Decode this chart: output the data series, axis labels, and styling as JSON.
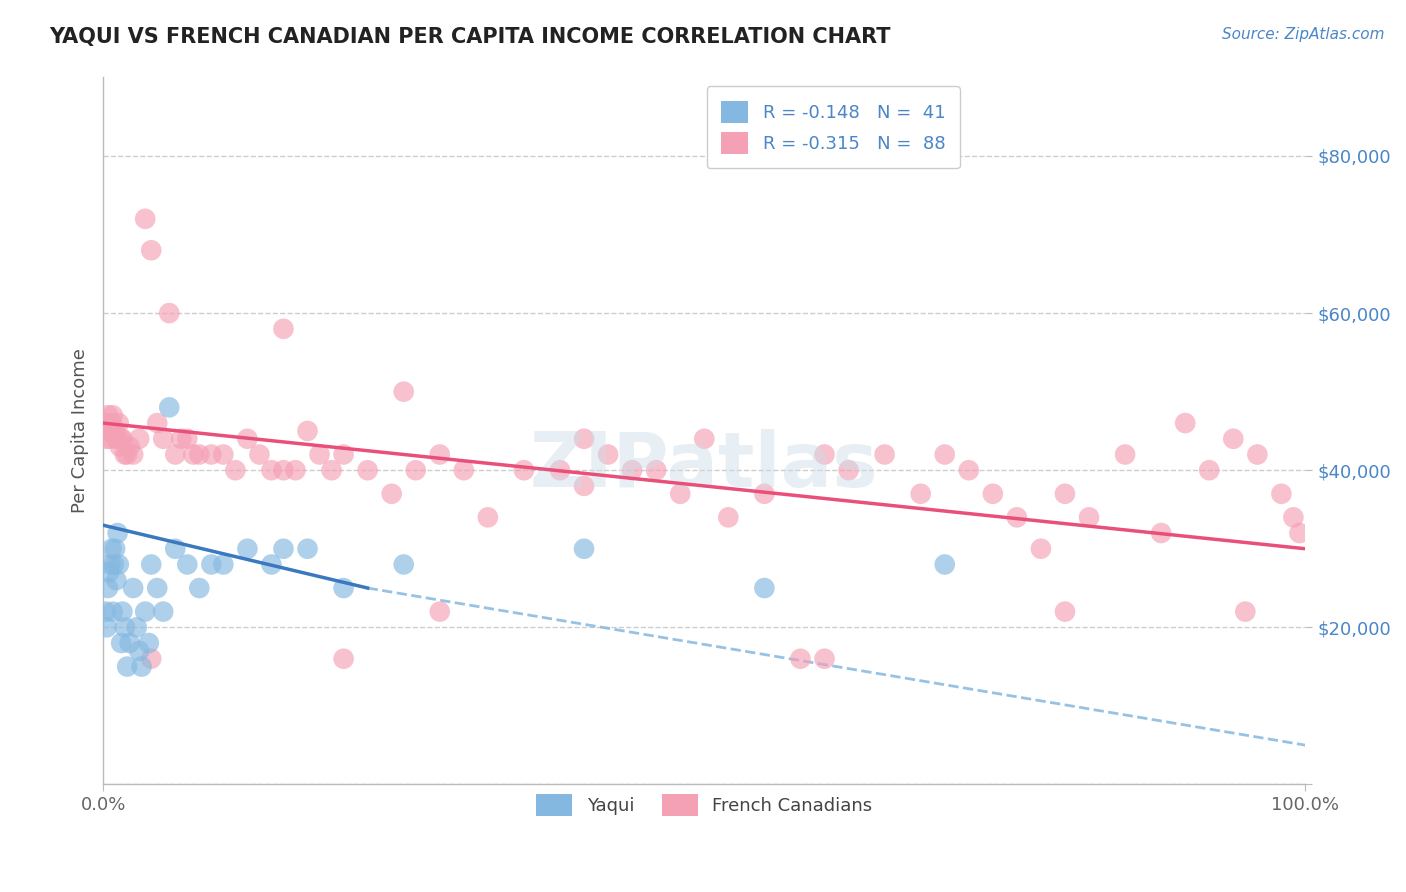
{
  "title": "YAQUI VS FRENCH CANADIAN PER CAPITA INCOME CORRELATION CHART",
  "source_text": "Source: ZipAtlas.com",
  "ylabel": "Per Capita Income",
  "xlim": [
    0.0,
    100.0
  ],
  "ylim": [
    0,
    90000
  ],
  "yticks": [
    0,
    20000,
    40000,
    60000,
    80000
  ],
  "ytick_labels": [
    "",
    "$20,000",
    "$40,000",
    "$60,000",
    "$80,000"
  ],
  "bg_color": "#ffffff",
  "grid_color": "#c8c8c8",
  "yaqui_color": "#85b8e0",
  "french_color": "#f4a0b5",
  "yaqui_line_color": "#3a78c0",
  "french_line_color": "#e8507a",
  "dashed_line_color": "#85b8e0",
  "legend_yaqui_label": "R = -0.148   N =  41",
  "legend_french_label": "R = -0.315   N =  88",
  "watermark_text": "ZIPatlas",
  "bottom_legend_yaqui": "Yaqui",
  "bottom_legend_french": "French Canadians",
  "yaqui_scatter_x": [
    0.2,
    0.3,
    0.4,
    0.5,
    0.6,
    0.7,
    0.8,
    0.9,
    1.0,
    1.1,
    1.2,
    1.3,
    1.5,
    1.6,
    1.8,
    2.0,
    2.2,
    2.5,
    2.8,
    3.0,
    3.2,
    3.5,
    3.8,
    4.0,
    4.5,
    5.0,
    5.5,
    6.0,
    7.0,
    8.0,
    9.0,
    10.0,
    12.0,
    14.0,
    15.0,
    17.0,
    20.0,
    25.0,
    40.0,
    55.0,
    70.0
  ],
  "yaqui_scatter_y": [
    22000,
    20000,
    25000,
    27000,
    28000,
    30000,
    22000,
    28000,
    30000,
    26000,
    32000,
    28000,
    18000,
    22000,
    20000,
    15000,
    18000,
    25000,
    20000,
    17000,
    15000,
    22000,
    18000,
    28000,
    25000,
    22000,
    48000,
    30000,
    28000,
    25000,
    28000,
    28000,
    30000,
    28000,
    30000,
    30000,
    25000,
    28000,
    30000,
    25000,
    28000
  ],
  "french_scatter_x": [
    0.2,
    0.3,
    0.4,
    0.5,
    0.6,
    0.7,
    0.8,
    0.9,
    1.0,
    1.1,
    1.2,
    1.3,
    1.4,
    1.5,
    1.6,
    1.8,
    2.0,
    2.2,
    2.5,
    3.0,
    3.5,
    4.0,
    4.5,
    5.0,
    5.5,
    6.0,
    6.5,
    7.0,
    7.5,
    8.0,
    9.0,
    10.0,
    11.0,
    12.0,
    13.0,
    14.0,
    15.0,
    16.0,
    17.0,
    18.0,
    19.0,
    20.0,
    22.0,
    24.0,
    26.0,
    28.0,
    30.0,
    32.0,
    35.0,
    38.0,
    40.0,
    42.0,
    44.0,
    46.0,
    48.0,
    50.0,
    52.0,
    55.0,
    58.0,
    60.0,
    62.0,
    65.0,
    68.0,
    70.0,
    72.0,
    74.0,
    76.0,
    78.0,
    80.0,
    82.0,
    85.0,
    88.0,
    90.0,
    92.0,
    94.0,
    96.0,
    98.0,
    99.0,
    99.5,
    4.0,
    20.0,
    28.0,
    95.0,
    15.0,
    40.0,
    60.0,
    80.0,
    25.0
  ],
  "french_scatter_y": [
    46000,
    44000,
    47000,
    45000,
    44000,
    46000,
    47000,
    45000,
    45000,
    44000,
    44000,
    46000,
    43000,
    44000,
    44000,
    42000,
    42000,
    43000,
    42000,
    44000,
    72000,
    68000,
    46000,
    44000,
    60000,
    42000,
    44000,
    44000,
    42000,
    42000,
    42000,
    42000,
    40000,
    44000,
    42000,
    40000,
    58000,
    40000,
    45000,
    42000,
    40000,
    42000,
    40000,
    37000,
    40000,
    42000,
    40000,
    34000,
    40000,
    40000,
    44000,
    42000,
    40000,
    40000,
    37000,
    44000,
    34000,
    37000,
    16000,
    42000,
    40000,
    42000,
    37000,
    42000,
    40000,
    37000,
    34000,
    30000,
    37000,
    34000,
    42000,
    32000,
    46000,
    40000,
    44000,
    42000,
    37000,
    34000,
    32000,
    16000,
    16000,
    22000,
    22000,
    40000,
    38000,
    16000,
    22000,
    50000
  ],
  "yaqui_trend_x0": 0,
  "yaqui_trend_x1": 22,
  "yaqui_trend_y0": 33000,
  "yaqui_trend_y1": 25000,
  "french_trend_x0": 0,
  "french_trend_x1": 100,
  "french_trend_y0": 46000,
  "french_trend_y1": 30000,
  "dashed_trend_x0": 22,
  "dashed_trend_x1": 100,
  "dashed_trend_y0": 25000,
  "dashed_trend_y1": 5000
}
